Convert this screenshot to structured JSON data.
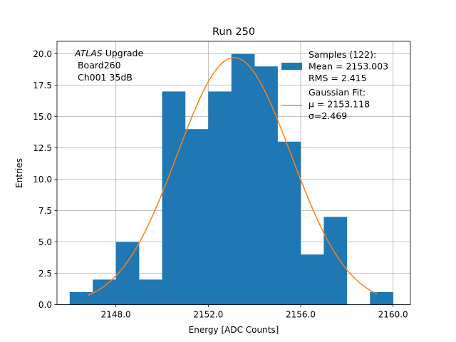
{
  "chart_data": {
    "type": "bar",
    "title": "Run 250",
    "xlabel": "Energy [ADC Counts]",
    "ylabel": "Entries",
    "xlim": [
      2145.45,
      2160.75
    ],
    "ylim": [
      0,
      21
    ],
    "grid": true,
    "xticks": [
      2148.0,
      2152.0,
      2156.0,
      2160.0
    ],
    "xtick_labels": [
      "2148.0",
      "2152.0",
      "2156.0",
      "2160.0"
    ],
    "yticks": [
      0,
      2.5,
      5,
      7.5,
      10,
      12.5,
      15,
      17.5,
      20
    ],
    "ytick_labels": [
      "0.0",
      "2.5",
      "5.0",
      "7.5",
      "10.0",
      "12.5",
      "15.0",
      "17.5",
      "20.0"
    ],
    "annotation": {
      "line1_italic": "ATLAS",
      "line1_rest": " Upgrade",
      "line2": " Board260",
      "line3": " Ch001 35dB"
    },
    "histogram": {
      "color": "#1f77b4",
      "bin_edges": [
        2146,
        2147,
        2148,
        2149,
        2150,
        2151,
        2152,
        2153,
        2154,
        2155,
        2156,
        2157,
        2158,
        2159,
        2160
      ],
      "counts": [
        1,
        2,
        5,
        2,
        17,
        14,
        17,
        20,
        19,
        13,
        4,
        7,
        0,
        1
      ]
    },
    "fit": {
      "color": "#ff7f0e",
      "mu": 2153.118,
      "sigma": 2.469,
      "amplitude": 19.7,
      "x_range": [
        2146.8,
        2159.3
      ]
    },
    "legend": {
      "placement": "top-right",
      "entries": [
        {
          "kind": "patch",
          "color": "#1f77b4",
          "lines": [
            "Samples (122):",
            " Mean = 2153.003",
            " RMS = 2.415"
          ]
        },
        {
          "kind": "line",
          "color": "#ff7f0e",
          "lines": [
            "Gaussian Fit:",
            " μ = 2153.118",
            " σ=2.469"
          ]
        }
      ]
    }
  }
}
